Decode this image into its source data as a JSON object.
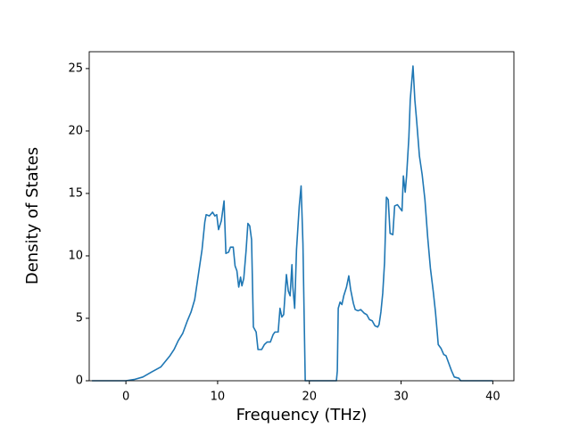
{
  "chart_data": {
    "type": "line",
    "xlabel": "Frequency (THz)",
    "ylabel": "Density of States",
    "x": [
      -3.7,
      0,
      0.9,
      1.85,
      2.8,
      3.8,
      4.8,
      5.25,
      5.7,
      6.2,
      6.7,
      7.1,
      7.5,
      7.9,
      8.3,
      8.6,
      8.75,
      9.1,
      9.45,
      9.7,
      9.9,
      10.1,
      10.4,
      10.7,
      10.9,
      11.2,
      11.4,
      11.7,
      11.9,
      12.1,
      12.3,
      12.5,
      12.65,
      12.85,
      13.1,
      13.3,
      13.5,
      13.7,
      13.9,
      14.2,
      14.4,
      14.8,
      15.1,
      15.4,
      15.75,
      16.05,
      16.25,
      16.6,
      16.8,
      17.0,
      17.2,
      17.5,
      17.7,
      17.9,
      18.1,
      18.2,
      18.4,
      18.6,
      18.9,
      19.1,
      19.3,
      19.55,
      22.95,
      23.05,
      23.15,
      23.35,
      23.55,
      23.75,
      24.05,
      24.3,
      24.5,
      24.8,
      25.0,
      25.3,
      25.6,
      26.0,
      26.25,
      26.55,
      26.85,
      27.15,
      27.45,
      27.6,
      27.8,
      28.0,
      28.2,
      28.4,
      28.6,
      28.8,
      29.1,
      29.3,
      29.6,
      29.9,
      30.1,
      30.25,
      30.45,
      30.6,
      30.85,
      31.0,
      31.3,
      31.5,
      31.7,
      32.0,
      32.3,
      32.6,
      32.9,
      33.2,
      33.5,
      33.75,
      33.95,
      34.05,
      34.35,
      34.65,
      34.9,
      35.2,
      35.5,
      35.8,
      36.3,
      36.5,
      40.0
    ],
    "series": [
      {
        "name": "DOS",
        "color": "#1f77b4",
        "values": [
          0,
          0,
          0.1,
          0.3,
          0.7,
          1.1,
          2.0,
          2.5,
          3.2,
          3.8,
          4.8,
          5.5,
          6.5,
          8.5,
          10.5,
          12.7,
          13.3,
          13.2,
          13.5,
          13.2,
          13.3,
          12.1,
          12.8,
          14.4,
          10.2,
          10.3,
          10.7,
          10.7,
          9.2,
          8.8,
          7.5,
          8.3,
          7.6,
          8.2,
          10.4,
          12.6,
          12.4,
          11.3,
          4.3,
          3.9,
          2.5,
          2.5,
          2.9,
          3.1,
          3.1,
          3.7,
          3.9,
          3.9,
          5.8,
          5.1,
          5.3,
          8.5,
          7.2,
          6.8,
          9.3,
          7.5,
          5.8,
          10.5,
          14.0,
          15.6,
          11.0,
          0,
          0,
          0.8,
          5.8,
          6.3,
          6.1,
          6.8,
          7.5,
          8.4,
          7.3,
          6.2,
          5.7,
          5.6,
          5.7,
          5.4,
          5.3,
          4.9,
          4.8,
          4.4,
          4.3,
          4.5,
          5.5,
          7.0,
          9.5,
          14.7,
          14.5,
          11.8,
          11.7,
          14.0,
          14.1,
          13.8,
          13.6,
          16.4,
          15.1,
          16.4,
          19.5,
          22.5,
          25.2,
          22.5,
          20.8,
          18.0,
          16.5,
          14.5,
          11.5,
          9.0,
          7.2,
          5.5,
          3.8,
          2.9,
          2.6,
          2.1,
          2.0,
          1.4,
          0.8,
          0.3,
          0.2,
          0,
          0
        ]
      }
    ],
    "xlim": [
      -4.0,
      42.3
    ],
    "ylim": [
      0,
      26.35
    ],
    "xticks": [
      0,
      10,
      20,
      30,
      40
    ],
    "yticks": [
      0,
      5,
      10,
      15,
      20,
      25
    ]
  }
}
